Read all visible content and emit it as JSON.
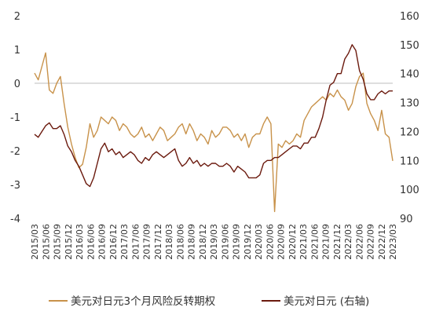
{
  "chart_data": {
    "type": "line",
    "colors": {
      "risk_reversal": "#C8924A",
      "usdjpy": "#6B1A0E",
      "zero_line": "#BDBDBD"
    },
    "x_labels": [
      "2015/03",
      "2015/06",
      "2015/09",
      "2015/12",
      "2016/03",
      "2016/06",
      "2016/09",
      "2016/12",
      "2017/03",
      "2017/06",
      "2017/09",
      "2017/12",
      "2018/03",
      "2018/06",
      "2018/09",
      "2018/12",
      "2019/03",
      "2019/06",
      "2019/09",
      "2019/12",
      "2020/03",
      "2020/06",
      "2020/09",
      "2020/12",
      "2021/03",
      "2021/06",
      "2021/09",
      "2021/12",
      "2022/03",
      "2022/06",
      "2022/09",
      "2022/12",
      "2023/03"
    ],
    "y_left": {
      "ticks": [
        "2",
        "1",
        "0",
        "-1",
        "-2",
        "-3",
        "-4"
      ],
      "range": [
        -4,
        2
      ]
    },
    "y_right": {
      "ticks": [
        "160",
        "150",
        "140",
        "130",
        "120",
        "110",
        "100",
        "90"
      ],
      "range": [
        90,
        160
      ]
    },
    "series": [
      {
        "name": "美元对日元3个月风险反转期权",
        "axis": "left",
        "values": [
          0.3,
          0.1,
          0.5,
          0.9,
          -0.2,
          -0.3,
          0.0,
          0.2,
          -0.6,
          -1.3,
          -1.8,
          -2.2,
          -2.5,
          -2.4,
          -1.9,
          -1.2,
          -1.6,
          -1.4,
          -1.0,
          -1.1,
          -1.2,
          -1.0,
          -1.1,
          -1.4,
          -1.2,
          -1.3,
          -1.5,
          -1.6,
          -1.5,
          -1.3,
          -1.6,
          -1.5,
          -1.7,
          -1.5,
          -1.3,
          -1.4,
          -1.7,
          -1.6,
          -1.5,
          -1.3,
          -1.2,
          -1.5,
          -1.2,
          -1.4,
          -1.7,
          -1.5,
          -1.6,
          -1.8,
          -1.4,
          -1.6,
          -1.5,
          -1.3,
          -1.3,
          -1.4,
          -1.6,
          -1.5,
          -1.7,
          -1.5,
          -1.9,
          -1.6,
          -1.5,
          -1.5,
          -1.2,
          -1.0,
          -1.2,
          -3.8,
          -1.8,
          -1.9,
          -1.7,
          -1.8,
          -1.7,
          -1.5,
          -1.6,
          -1.1,
          -0.9,
          -0.7,
          -0.6,
          -0.5,
          -0.4,
          -0.5,
          -0.3,
          -0.4,
          -0.2,
          -0.4,
          -0.5,
          -0.8,
          -0.6,
          -0.1,
          0.2,
          0.3,
          -0.6,
          -0.9,
          -1.1,
          -1.4,
          -0.8,
          -1.5,
          -1.6,
          -2.3
        ]
      },
      {
        "name": "美元对日元 (右轴)",
        "axis": "right",
        "values": [
          119,
          118,
          120,
          122,
          123,
          121,
          121,
          122,
          119,
          115,
          113,
          110,
          108,
          105,
          102,
          101,
          104,
          109,
          114,
          116,
          113,
          114,
          112,
          113,
          111,
          112,
          113,
          112,
          110,
          109,
          111,
          110,
          112,
          113,
          112,
          111,
          112,
          113,
          114,
          110,
          108,
          109,
          111,
          109,
          110,
          108,
          109,
          108,
          109,
          109,
          108,
          108,
          109,
          108,
          106,
          108,
          107,
          106,
          104,
          104,
          104,
          105,
          109,
          110,
          110,
          111,
          111,
          112,
          113,
          114,
          115,
          115,
          114,
          116,
          116,
          118,
          118,
          121,
          125,
          131,
          136,
          137,
          140,
          140,
          145,
          147,
          150,
          148,
          141,
          138,
          133,
          131,
          131,
          133,
          134,
          133,
          134,
          134
        ]
      }
    ]
  }
}
